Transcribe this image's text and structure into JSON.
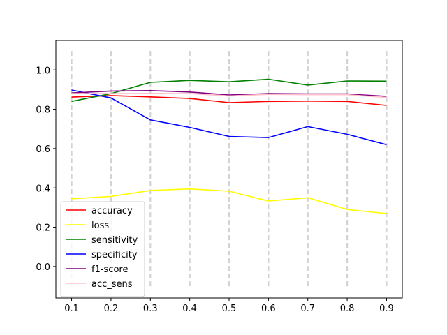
{
  "chart_data": {
    "type": "line",
    "title": "",
    "xlabel": "",
    "ylabel": "",
    "x": [
      0.1,
      0.2,
      0.3,
      0.4,
      0.5,
      0.6,
      0.7,
      0.8,
      0.9
    ],
    "xlim": [
      0.06,
      0.94
    ],
    "ylim": [
      -0.16,
      1.15
    ],
    "xticks": [
      "0.1",
      "0.2",
      "0.3",
      "0.4",
      "0.5",
      "0.6",
      "0.7",
      "0.8",
      "0.9"
    ],
    "yticks": [
      "0.0",
      "0.2",
      "0.4",
      "0.6",
      "0.8",
      "1.0"
    ],
    "ytick_values": [
      0.0,
      0.2,
      0.4,
      0.6,
      0.8,
      1.0
    ],
    "vlines": {
      "x": [
        0.1,
        0.2,
        0.3,
        0.4,
        0.5,
        0.6,
        0.7,
        0.8,
        0.9
      ],
      "ymin": -0.1,
      "ymax": 1.1,
      "style": "dashed",
      "color": "#d3d3d3"
    },
    "legend_position": "lower-left",
    "series": [
      {
        "name": "accuracy",
        "color": "#ff0000",
        "values": [
          0.862,
          0.87,
          0.863,
          0.855,
          0.834,
          0.84,
          0.842,
          0.84,
          0.82
        ]
      },
      {
        "name": "loss",
        "color": "#ffff00",
        "values": [
          0.345,
          0.357,
          0.387,
          0.395,
          0.383,
          0.333,
          0.35,
          0.29,
          0.27
        ]
      },
      {
        "name": "sensitivity",
        "color": "#008000",
        "values": [
          0.84,
          0.88,
          0.937,
          0.947,
          0.94,
          0.953,
          0.923,
          0.944,
          0.943
        ]
      },
      {
        "name": "specificity",
        "color": "#0000ff",
        "values": [
          0.898,
          0.858,
          0.746,
          0.708,
          0.662,
          0.656,
          0.712,
          0.673,
          0.62
        ]
      },
      {
        "name": "f1-score",
        "color": "#800080",
        "values": [
          0.883,
          0.893,
          0.895,
          0.888,
          0.873,
          0.88,
          0.878,
          0.878,
          0.866
        ]
      },
      {
        "name": "acc_sens",
        "color": "#ffc0cb",
        "values": [
          0.88,
          0.88,
          0.881,
          0.88,
          0.868,
          0.876,
          0.874,
          0.874,
          0.86
        ]
      }
    ]
  }
}
